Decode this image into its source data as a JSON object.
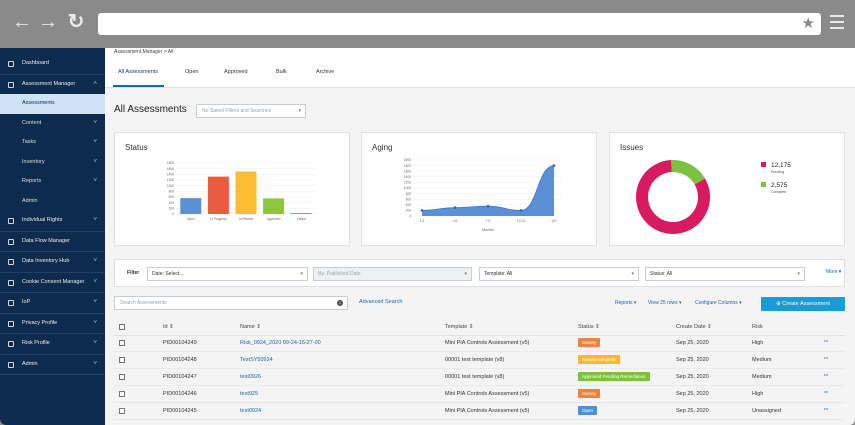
{
  "sidebar": {
    "items": [
      {
        "label": "Dashboard",
        "chevron": false
      },
      {
        "label": "Assessment Manager",
        "chevron": true
      },
      {
        "label": "Assessments",
        "sub": true,
        "active": true
      },
      {
        "label": "Content",
        "sub": true,
        "chevron": true
      },
      {
        "label": "Tasks",
        "sub": true,
        "chevron": true
      },
      {
        "label": "Inventory",
        "sub": true,
        "chevron": true
      },
      {
        "label": "Reports",
        "sub": true,
        "chevron": true
      },
      {
        "label": "Admin",
        "sub": true
      },
      {
        "label": "Individual Rights",
        "chevron": true
      },
      {
        "label": "Data Flow Manager"
      },
      {
        "label": "Data Inventory Hub",
        "chevron": true
      },
      {
        "label": "Cookie Consent Manager",
        "chevron": true
      },
      {
        "label": "IoP",
        "chevron": true
      },
      {
        "label": "Privacy Profile",
        "chevron": true
      },
      {
        "label": "Risk Profile",
        "chevron": true
      },
      {
        "label": "Admin",
        "chevron": true
      }
    ]
  },
  "header": {
    "breadcrumb": "Assessment Manager  >  All",
    "tabs": [
      "All Assessments",
      "Open",
      "Approved",
      "Bulk",
      "Archive"
    ]
  },
  "page": {
    "title": "All Assessments",
    "saved_filters_placeholder": "No Saved Filters and Searches"
  },
  "cards": {
    "status_title": "Status",
    "aging_title": "Aging",
    "issues_title": "Issues",
    "aging_xlabel": "Months",
    "issues_legend": [
      {
        "value": "12,175",
        "label": "Pending",
        "color": "#d81b60"
      },
      {
        "value": "2,575",
        "label": "Complete",
        "color": "#7cc242"
      }
    ]
  },
  "chart_data": [
    {
      "type": "bar",
      "title": "Status",
      "categories": [
        "Open",
        "In Progress",
        "In Review",
        "Approved",
        "Failed"
      ],
      "values": [
        560,
        1320,
        1500,
        550,
        30
      ],
      "colors": [
        "#5b8fd6",
        "#e85c3f",
        "#fbbd34",
        "#8cc63f",
        "#e5587f"
      ],
      "ylim": [
        0,
        1800
      ],
      "yticks": [
        "0",
        "200",
        "400",
        "600",
        "800",
        "1000",
        "1200",
        "1400",
        "1600",
        "1800"
      ]
    },
    {
      "type": "area",
      "title": "Aging",
      "xlabel": "Months",
      "categories": [
        "1-3",
        "4-6",
        "7-9",
        "10-12",
        "13+"
      ],
      "values": [
        200,
        300,
        350,
        200,
        1800
      ],
      "ylim": [
        0,
        2000
      ],
      "yticks": [
        "0",
        "200",
        "400",
        "600",
        "800",
        "1000",
        "1200",
        "1400",
        "1600",
        "1800",
        "2000"
      ]
    },
    {
      "type": "pie",
      "title": "Issues",
      "labels": [
        "Pending",
        "Complete"
      ],
      "values": [
        12175,
        2575
      ],
      "colors": [
        "#d81b60",
        "#7cc242"
      ]
    }
  ],
  "filters": {
    "label": "Filter",
    "date": "Date: Select...",
    "published": "By: Published Date",
    "template": "Template: All",
    "status": "Status: All",
    "more": "More"
  },
  "toolbar": {
    "search_placeholder": "Search Assessments",
    "advanced": "Advanced Search",
    "reports": "Reports",
    "view_rows": "View 25 rows",
    "configure": "Configure Columns",
    "create": "Create Assessment"
  },
  "table": {
    "columns": [
      "Id",
      "Name",
      "Template",
      "Status",
      "Create Date",
      "Risk"
    ],
    "rows": [
      {
        "id": "PID00104249",
        "name": "Risk_0924_2020 09-24-16-27-00",
        "template": "Mini PIA Controls Assessment (v5)",
        "status": "Survey",
        "status_color": "#f0823c",
        "date": "Sep 25, 2020",
        "risk": "High"
      },
      {
        "id": "PID00104248",
        "name": "TestSY50924",
        "template": "00001 test template (v8)",
        "status": "Survey complete",
        "status_color": "#fbb82f",
        "date": "Sep 25, 2020",
        "risk": "Medium"
      },
      {
        "id": "PID00104247",
        "name": "test0926",
        "template": "00001 test template (v8)",
        "status": "Approved Pending Remediation",
        "status_color": "#7cc242",
        "date": "Sep 25, 2020",
        "risk": "Medium"
      },
      {
        "id": "PID00104246",
        "name": "test925",
        "template": "Mini PIA Controls Assessment (v5)",
        "status": "Survey",
        "status_color": "#f0823c",
        "date": "Sep 25, 2020",
        "risk": "High"
      },
      {
        "id": "PID00104245",
        "name": "test0924",
        "template": "Mini PIA Controls Assessment (v5)",
        "status": "Open",
        "status_color": "#4a90d9",
        "date": "Sep 25, 2020",
        "risk": "Unassigned"
      }
    ]
  }
}
